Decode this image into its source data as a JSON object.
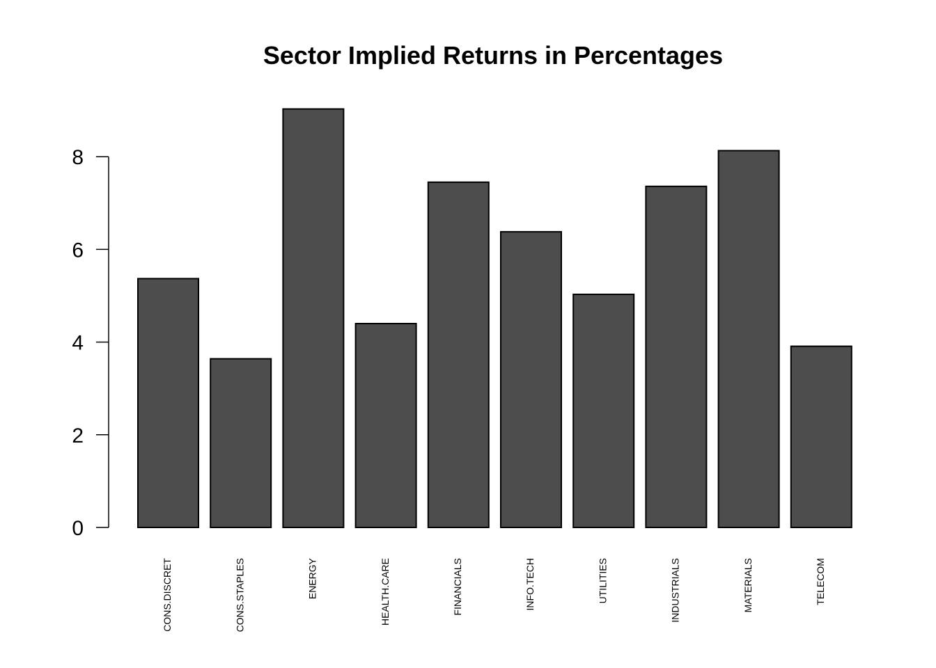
{
  "chart_data": {
    "type": "bar",
    "title": "Sector Implied Returns in Percentages",
    "xlabel": "",
    "ylabel": "",
    "categories": [
      "CONS.DISCRET",
      "CONS.STAPLES",
      "ENERGY",
      "HEALTH.CARE",
      "FINANCIALS",
      "INFO.TECH",
      "UTILITIES",
      "INDUSTRIALS",
      "MATERIALS",
      "TELECOM"
    ],
    "values": [
      5.37,
      3.64,
      9.03,
      4.4,
      7.45,
      6.38,
      5.03,
      7.36,
      8.13,
      3.91
    ],
    "yticks": [
      "0",
      "2",
      "4",
      "6",
      "8"
    ],
    "ylim": [
      0,
      9.03
    ],
    "grid": false,
    "bar_color": "#4d4d4d",
    "bar_outline_color": "#000000"
  }
}
